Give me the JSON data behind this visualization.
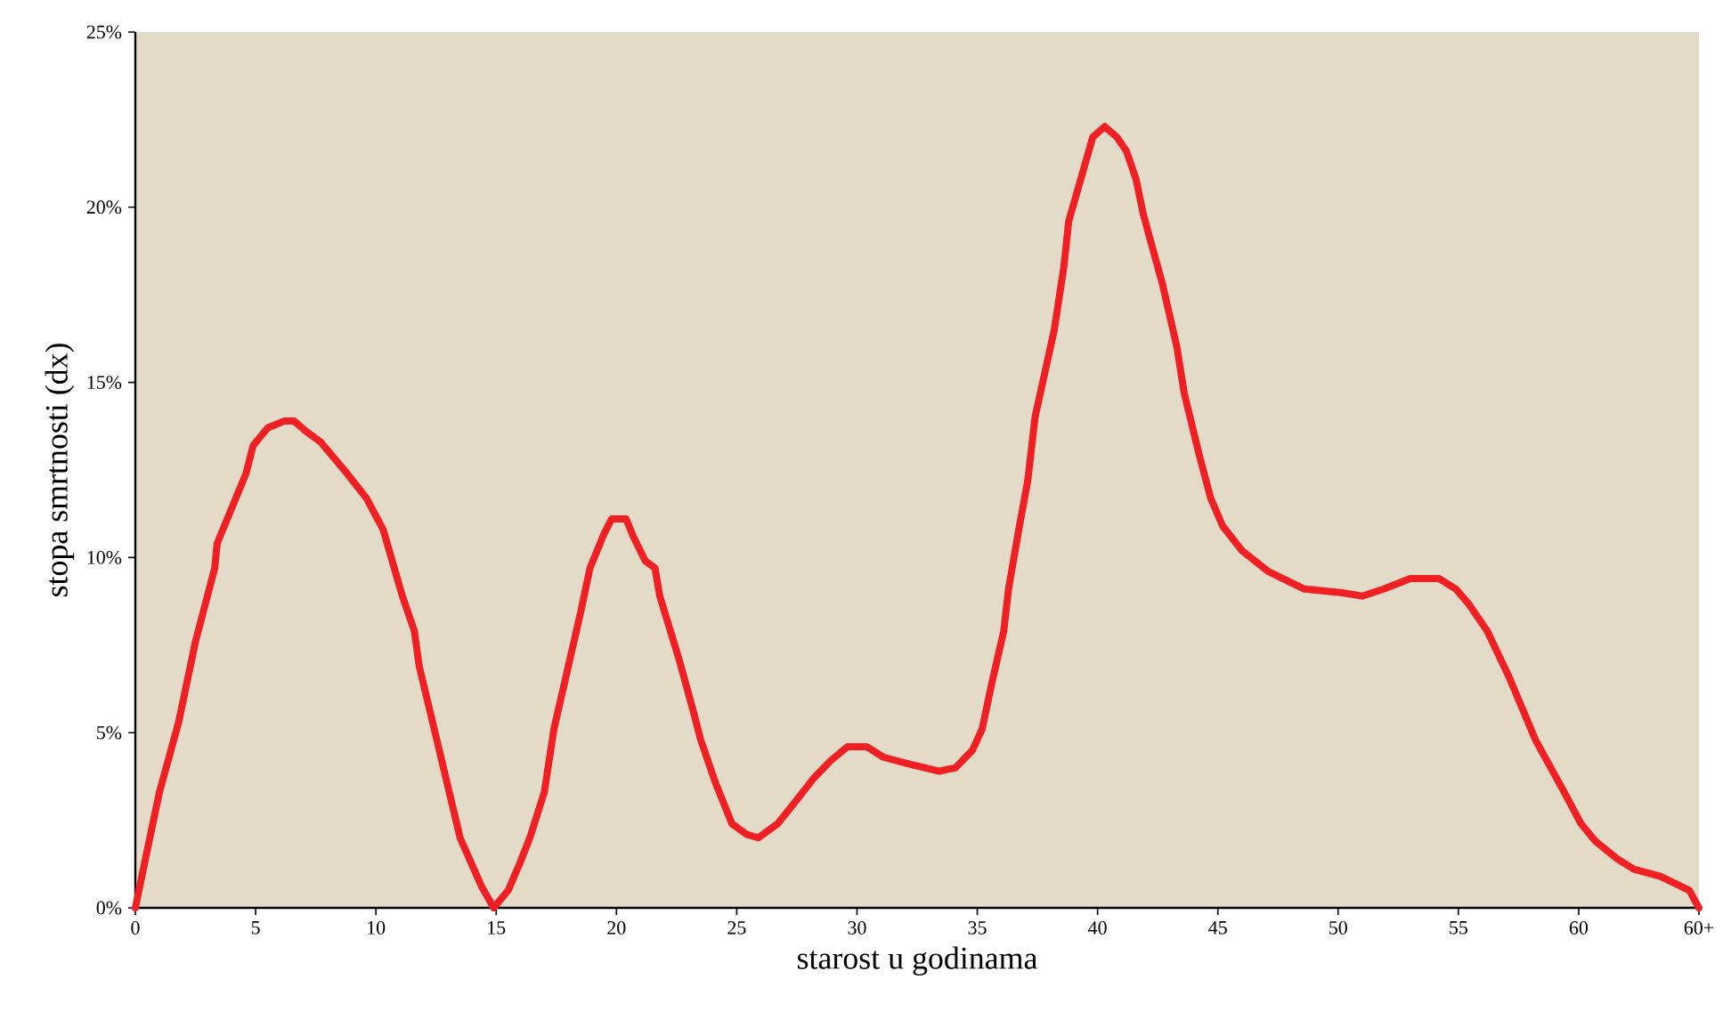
{
  "chart_data": {
    "type": "line",
    "xlabel": "starost u godinama",
    "ylabel": "stopa smrtnosti (dx)",
    "xlim": [
      0,
      65
    ],
    "ylim": [
      0,
      25
    ],
    "xticks": [
      0,
      5,
      10,
      15,
      20,
      25,
      30,
      35,
      40,
      45,
      50,
      55,
      60,
      {
        "value": 65,
        "label": "60+"
      }
    ],
    "yticks": [
      {
        "value": 0,
        "label": "0%"
      },
      {
        "value": 5,
        "label": "5%"
      },
      {
        "value": 10,
        "label": "10%"
      },
      {
        "value": 15,
        "label": "15%"
      },
      {
        "value": 20,
        "label": "20%"
      },
      {
        "value": 25,
        "label": "25%"
      }
    ],
    "marker": "none",
    "line_style": "solid",
    "series": [
      {
        "color": "#ee2024",
        "x": [
          0,
          0.45,
          1.0,
          1.8,
          2.5,
          3.3,
          3.4,
          4.0,
          4.6,
          4.9,
          5.5,
          6.2,
          6.6,
          7.1,
          7.7,
          8.8,
          9.6,
          10.3,
          11.1,
          11.6,
          11.8,
          12.6,
          13.5,
          14.4,
          14.9,
          15.5,
          16.0,
          16.4,
          17.0,
          17.4,
          18.0,
          18.5,
          18.9,
          19.5,
          19.8,
          20.4,
          20.7,
          21.2,
          21.6,
          21.8,
          22.6,
          23.2,
          23.5,
          24.1,
          24.8,
          25.4,
          25.9,
          26.7,
          27.4,
          28.2,
          28.9,
          29.6,
          30.4,
          31.1,
          32.2,
          33.4,
          34.1,
          34.8,
          35.2,
          35.6,
          36.1,
          36.3,
          36.7,
          37.1,
          37.4,
          38.2,
          38.6,
          38.8,
          39.3,
          39.8,
          40.3,
          40.8,
          41.2,
          41.6,
          41.9,
          42.7,
          43.3,
          43.6,
          44.2,
          44.7,
          45.2,
          46.0,
          47.1,
          48.6,
          50.1,
          51.0,
          51.9,
          53.0,
          54.2,
          54.9,
          55.4,
          56.2,
          57.1,
          58.2,
          59.4,
          60.1,
          60.7,
          61.6,
          62.3,
          63.4,
          64.6,
          65
        ],
        "values": [
          0,
          1.5,
          3.3,
          5.3,
          7.6,
          9.7,
          10.4,
          11.4,
          12.4,
          13.2,
          13.7,
          13.9,
          13.9,
          13.6,
          13.3,
          12.4,
          11.7,
          10.8,
          8.9,
          7.9,
          6.9,
          4.6,
          2.0,
          0.6,
          0,
          0.5,
          1.3,
          2.0,
          3.3,
          5.1,
          6.9,
          8.4,
          9.7,
          10.7,
          11.1,
          11.1,
          10.6,
          9.9,
          9.7,
          8.9,
          7.1,
          5.6,
          4.8,
          3.6,
          2.4,
          2.1,
          2.0,
          2.4,
          3.0,
          3.7,
          4.2,
          4.6,
          4.6,
          4.3,
          4.1,
          3.9,
          4.0,
          4.5,
          5.1,
          6.4,
          7.9,
          9.1,
          10.7,
          12.2,
          14.0,
          16.5,
          18.3,
          19.6,
          20.8,
          22.0,
          22.3,
          22.0,
          21.6,
          20.8,
          19.8,
          17.8,
          16.0,
          14.7,
          13.0,
          11.7,
          10.9,
          10.2,
          9.6,
          9.1,
          9.0,
          8.9,
          9.1,
          9.4,
          9.4,
          9.1,
          8.7,
          7.9,
          6.6,
          4.8,
          3.3,
          2.4,
          1.9,
          1.4,
          1.1,
          0.9,
          0.5,
          0
        ]
      }
    ]
  }
}
